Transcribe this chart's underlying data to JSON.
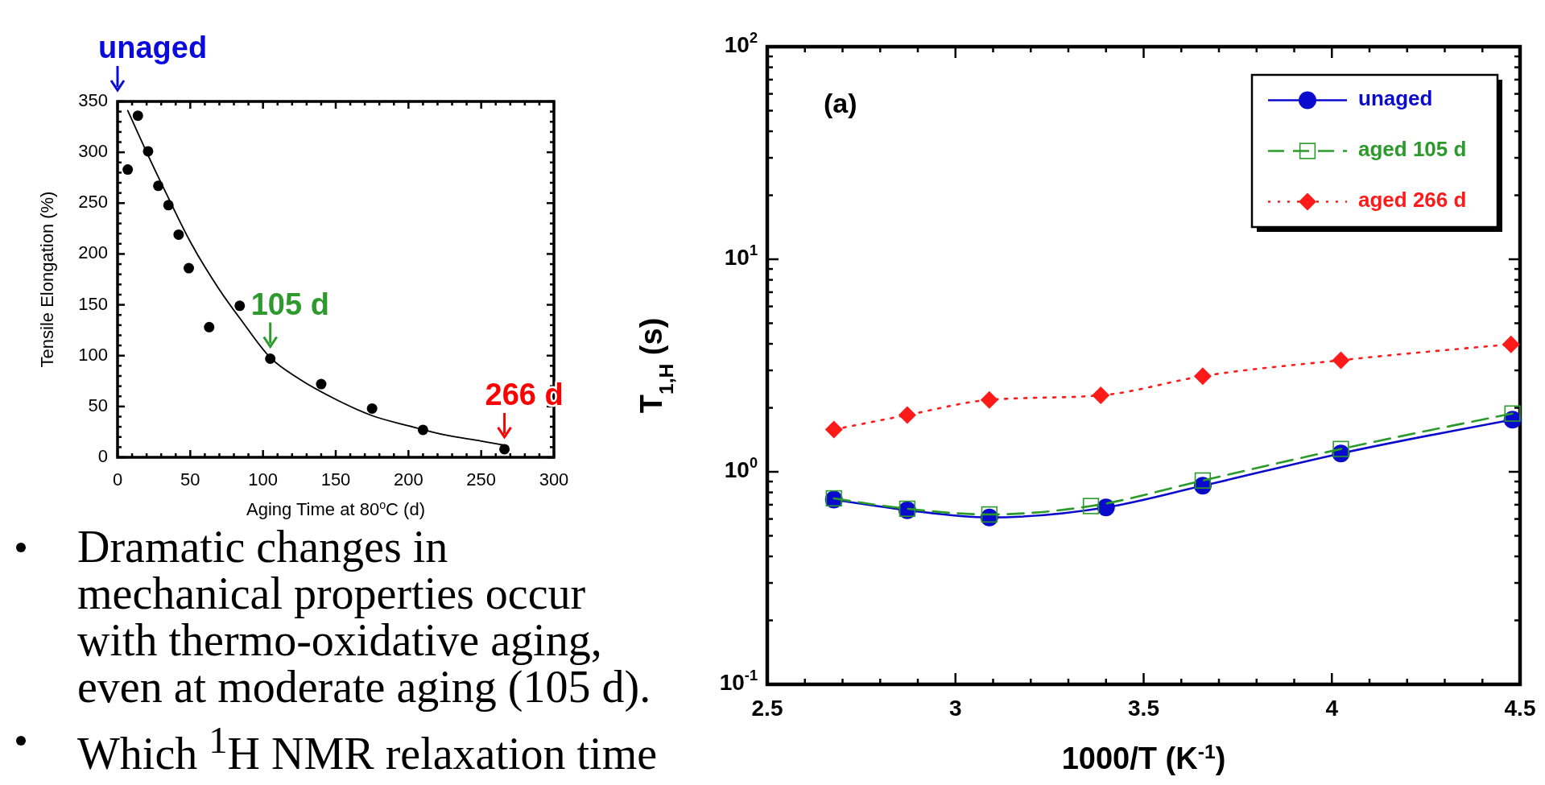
{
  "chart_data": [
    {
      "type": "scatter",
      "xlabel": "Aging Time at 80$^{o}$C (d)",
      "ylabel": "Tensile Elongation (%)",
      "xlim": [
        0,
        300
      ],
      "ylim": [
        0,
        350
      ],
      "xticks": [
        0,
        {
          "value": 10,
          "label": null
        },
        {
          "value": 20,
          "label": null
        },
        {
          "value": 30,
          "label": null
        },
        {
          "value": 40,
          "label": null
        },
        50,
        {
          "value": 60,
          "label": null
        },
        {
          "value": 70,
          "label": null
        },
        {
          "value": 80,
          "label": null
        },
        {
          "value": 90,
          "label": null
        },
        100,
        {
          "value": 110,
          "label": null
        },
        {
          "value": 120,
          "label": null
        },
        {
          "value": 130,
          "label": null
        },
        {
          "value": 140,
          "label": null
        },
        150,
        {
          "value": 160,
          "label": null
        },
        {
          "value": 170,
          "label": null
        },
        {
          "value": 180,
          "label": null
        },
        {
          "value": 190,
          "label": null
        },
        200,
        {
          "value": 210,
          "label": null
        },
        {
          "value": 220,
          "label": null
        },
        {
          "value": 230,
          "label": null
        },
        {
          "value": 240,
          "label": null
        },
        250,
        {
          "value": 260,
          "label": null
        },
        {
          "value": 270,
          "label": null
        },
        {
          "value": 280,
          "label": null
        },
        {
          "value": 290,
          "label": null
        },
        300
      ],
      "yticks": [
        0,
        {
          "value": 10,
          "label": null
        },
        {
          "value": 20,
          "label": null
        },
        {
          "value": 30,
          "label": null
        },
        {
          "value": 40,
          "label": null
        },
        50,
        {
          "value": 60,
          "label": null
        },
        {
          "value": 70,
          "label": null
        },
        {
          "value": 80,
          "label": null
        },
        {
          "value": 90,
          "label": null
        },
        100,
        {
          "value": 110,
          "label": null
        },
        {
          "value": 120,
          "label": null
        },
        {
          "value": 130,
          "label": null
        },
        {
          "value": 140,
          "label": null
        },
        150,
        {
          "value": 160,
          "label": null
        },
        {
          "value": 170,
          "label": null
        },
        {
          "value": 180,
          "label": null
        },
        {
          "value": 190,
          "label": null
        },
        200,
        {
          "value": 210,
          "label": null
        },
        {
          "value": 220,
          "label": null
        },
        {
          "value": 230,
          "label": null
        },
        {
          "value": 240,
          "label": null
        },
        250,
        {
          "value": 260,
          "label": null
        },
        {
          "value": 270,
          "label": null
        },
        {
          "value": 280,
          "label": null
        },
        {
          "value": 290,
          "label": null
        },
        300,
        {
          "value": 310,
          "label": null
        },
        {
          "value": 320,
          "label": null
        },
        {
          "value": 330,
          "label": null
        },
        {
          "value": 340,
          "label": null
        },
        350
      ],
      "series": [
        {
          "type": "scatter",
          "color": "#000000",
          "marker": "circle",
          "x": [
            7,
            14,
            21,
            28,
            35,
            42,
            49,
            63,
            84,
            105,
            140,
            175,
            210,
            266
          ],
          "values": [
            283,
            336,
            301,
            267,
            248,
            219,
            186,
            128,
            149,
            97,
            72,
            48,
            27,
            8
          ]
        },
        {
          "type": "line",
          "color": "#000000",
          "marker": "none",
          "line_style": "solid",
          "x": [
            7,
            20,
            35,
            50,
            70,
            85,
            105,
            125,
            150,
            175,
            200,
            225,
            250,
            266
          ],
          "values": [
            341,
            300,
            255,
            212,
            165,
            135,
            98,
            77,
            57,
            41,
            31,
            22,
            16,
            12
          ]
        }
      ],
      "annotations": [
        "unaged",
        {
          "text": "105 d",
          "x": 105,
          "y": 97
        },
        {
          "text": "266 d",
          "x": 266,
          "y": 8
        }
      ]
    },
    {
      "type": "line",
      "xlabel": "1000/T (K$^{-1}$)",
      "ylabel": "T$_{1,H}$ (s)",
      "log": "y",
      "legend": "top right",
      "xlim": [
        2.5,
        4.5
      ],
      "ylim": [
        0.1,
        100
      ],
      "xticks": [
        2.5,
        {
          "value": 2.6,
          "label": null
        },
        {
          "value": 2.7,
          "label": null
        },
        {
          "value": 2.8,
          "label": null
        },
        {
          "value": 2.9,
          "label": null
        },
        3,
        {
          "value": 3.1,
          "label": null
        },
        {
          "value": 3.2,
          "label": null
        },
        {
          "value": 3.3,
          "label": null
        },
        {
          "value": 3.4,
          "label": null
        },
        3.5,
        {
          "value": 3.6,
          "label": null
        },
        {
          "value": 3.7,
          "label": null
        },
        {
          "value": 3.8,
          "label": null
        },
        {
          "value": 3.9,
          "label": null
        },
        4,
        {
          "value": 4.1,
          "label": null
        },
        {
          "value": 4.2,
          "label": null
        },
        {
          "value": 4.3,
          "label": null
        },
        {
          "value": 4.4,
          "label": null
        },
        4.5
      ],
      "yticks": [
        {
          "value": 0.1,
          "label": "10$^{-1}$"
        },
        {
          "value": 0.2,
          "label": null
        },
        {
          "value": 0.3,
          "label": null
        },
        {
          "value": 0.4,
          "label": null
        },
        {
          "value": 0.5,
          "label": null
        },
        {
          "value": 0.6,
          "label": null
        },
        {
          "value": 0.7,
          "label": null
        },
        {
          "value": 0.8,
          "label": null
        },
        {
          "value": 0.9,
          "label": null
        },
        {
          "value": 1,
          "label": "10$^{0}$"
        },
        {
          "value": 2,
          "label": null
        },
        {
          "value": 3,
          "label": null
        },
        {
          "value": 4,
          "label": null
        },
        {
          "value": 5,
          "label": null
        },
        {
          "value": 6,
          "label": null
        },
        {
          "value": 7,
          "label": null
        },
        {
          "value": 8,
          "label": null
        },
        {
          "value": 9,
          "label": null
        },
        {
          "value": 10,
          "label": "10$^{1}$"
        },
        {
          "value": 20,
          "label": null
        },
        {
          "value": 30,
          "label": null
        },
        {
          "value": 40,
          "label": null
        },
        {
          "value": 50,
          "label": null
        },
        {
          "value": 60,
          "label": null
        },
        {
          "value": 70,
          "label": null
        },
        {
          "value": 80,
          "label": null
        },
        {
          "value": 90,
          "label": null
        },
        {
          "value": 100,
          "label": "10$^{2}$"
        }
      ],
      "series": [
        {
          "name": "unaged",
          "color": "#0a0acc",
          "marker": "circle",
          "line_style": "solid",
          "x": [
            2.677,
            2.872,
            3.09,
            3.4,
            3.657,
            4.024,
            4.48
          ],
          "values": [
            0.74,
            0.66,
            0.61,
            0.68,
            0.86,
            1.22,
            1.76
          ]
        },
        {
          "name": "aged 105 d",
          "color": "#2a9a2a",
          "marker": "square",
          "line_style": "dashed",
          "x": [
            2.677,
            2.872,
            3.09,
            3.36,
            3.657,
            4.024,
            4.48
          ],
          "values": [
            0.75,
            0.67,
            0.63,
            0.69,
            0.91,
            1.28,
            1.88
          ]
        },
        {
          "name": "aged 266 d",
          "color": "#ff1a1a",
          "marker": "diamond",
          "line_style": "dotted",
          "x": [
            2.677,
            2.872,
            3.09,
            3.386,
            3.657,
            4.024,
            4.476
          ],
          "values": [
            1.58,
            1.85,
            2.18,
            2.29,
            2.82,
            3.35,
            3.98
          ]
        }
      ],
      "annotations": [
        "(a)"
      ]
    },
    {
      "type": "other",
      "annotations": [
        "Dramatic changes in mechanical properties occur with thermo-oxidative aging, even at moderate aging (105 d).",
        "Which $^{1}$H NMR relaxation time"
      ]
    }
  ]
}
